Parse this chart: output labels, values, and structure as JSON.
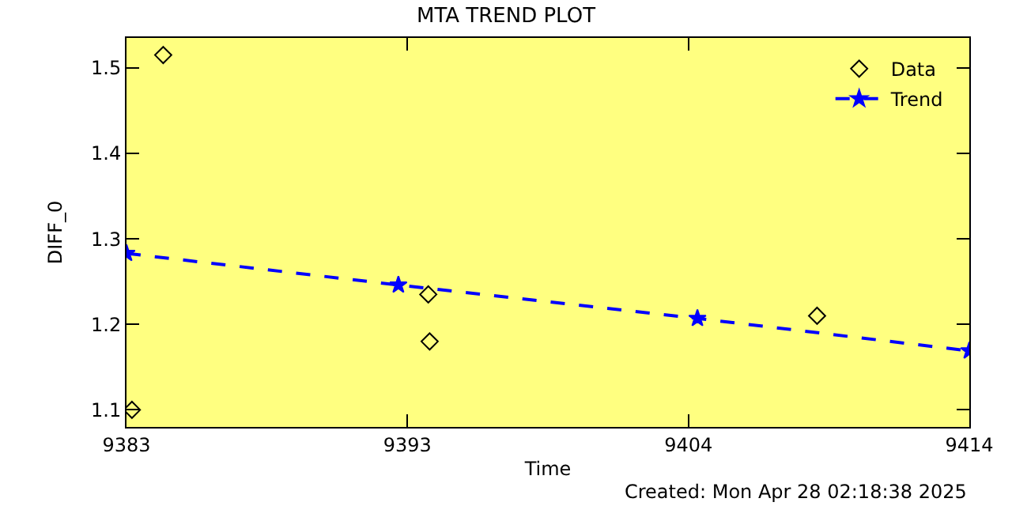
{
  "chart_data": {
    "type": "scatter",
    "title": "MTA TREND PLOT",
    "xlabel": "Time",
    "ylabel": "DIFF_0",
    "series": [
      {
        "name": "Data",
        "color": "#000000",
        "marker": "diamond",
        "x": [
          9383.2,
          9384.35,
          9394.1,
          9394.15,
          9408.4
        ],
        "values": [
          1.1,
          1.515,
          1.235,
          1.18,
          1.21
        ]
      },
      {
        "name": "Trend",
        "type": "line",
        "color": "#0000ff",
        "marker": "star",
        "line_style": "dashed",
        "x": [
          9383,
          9393,
          9404,
          9414
        ],
        "values": [
          1.283,
          1.246,
          1.207,
          1.169
        ]
      }
    ],
    "xlim": [
      9383,
      9414
    ],
    "xticks": [
      9383,
      {
        "value": 9393.33,
        "label": "9393"
      },
      {
        "value": 9403.67,
        "label": "9404"
      },
      9414
    ],
    "ylim": [
      1.08,
      1.535
    ],
    "yticks": [
      1.1,
      1.2,
      1.3,
      1.4,
      1.5
    ],
    "grid": false,
    "legend": "top right",
    "annotations": [
      "Created: Mon Apr 28 02:18:38 2025"
    ]
  }
}
